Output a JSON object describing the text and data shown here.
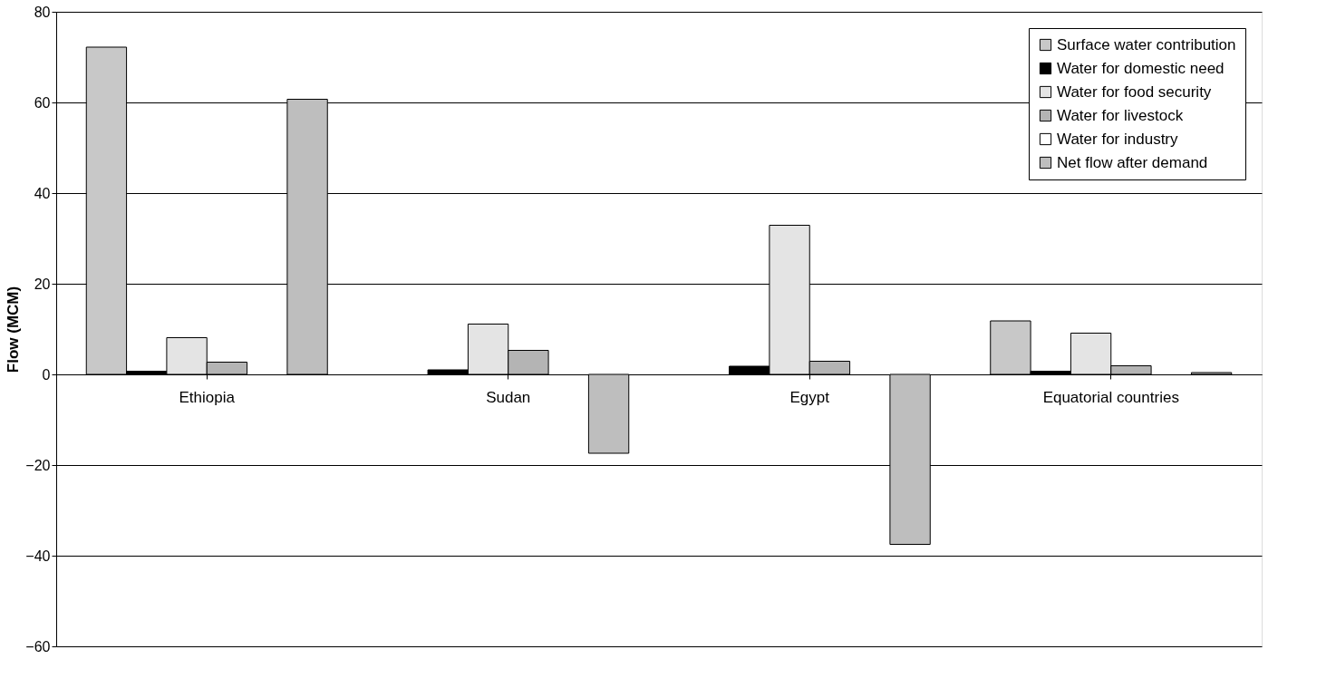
{
  "chart_data": {
    "type": "bar",
    "ylabel": "Flow (MCM)",
    "categories": [
      "Ethiopia",
      "Sudan",
      "Egypt",
      "Equatorial countries"
    ],
    "series": [
      {
        "name": "Surface water contribution",
        "color": "#c8c8c8",
        "values": [
          72.2,
          null,
          null,
          11.8
        ]
      },
      {
        "name": "Water for domestic need",
        "color": "#000000",
        "values": [
          0.7,
          1.0,
          1.8,
          0.7
        ]
      },
      {
        "name": "Water for food security",
        "color": "#e4e4e4",
        "values": [
          8.1,
          11.1,
          32.9,
          9.1
        ]
      },
      {
        "name": "Water for livestock",
        "color": "#b4b4b4",
        "values": [
          2.7,
          5.3,
          2.9,
          1.9
        ]
      },
      {
        "name": "Water for industry",
        "color": "#ffffff",
        "values": [
          null,
          null,
          null,
          null
        ]
      },
      {
        "name": "Net flow after demand",
        "color": "#bebebe",
        "values": [
          60.7,
          -17.4,
          -37.5,
          0.4
        ]
      }
    ],
    "ylim": [
      -60,
      80
    ],
    "yticks": [
      -60,
      -40,
      -20,
      0,
      20,
      40,
      60,
      80
    ],
    "grid": "y",
    "legend": "top right"
  }
}
